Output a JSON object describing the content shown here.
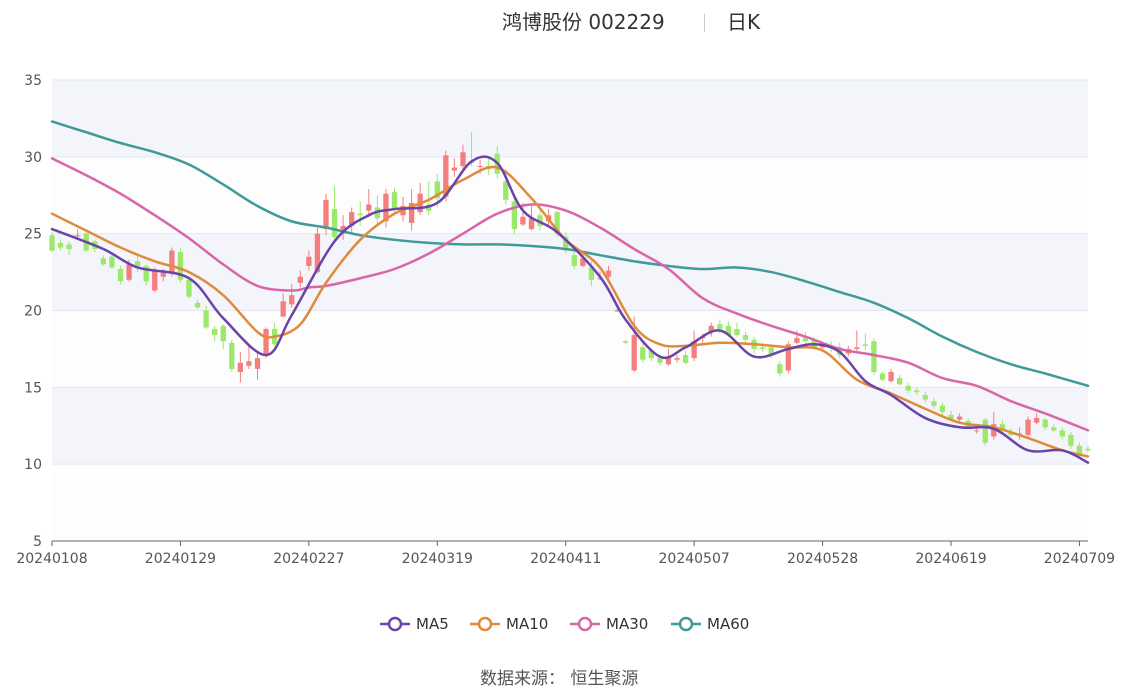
{
  "header": {
    "title": "鸿博股份 002229",
    "period": "日K"
  },
  "legend": [
    {
      "name": "MA5",
      "color": "#6a44a8"
    },
    {
      "name": "MA10",
      "color": "#e08a3c"
    },
    {
      "name": "MA30",
      "color": "#d866a8"
    },
    {
      "name": "MA60",
      "color": "#3f9a98"
    }
  ],
  "source": "数据来源： 恒生聚源",
  "colors": {
    "up": "#f47e7e",
    "down": "#9be86c",
    "band": "#f3f5fb",
    "grid": "#e3e6ef"
  },
  "chart_data": {
    "type": "candlestick",
    "title": "鸿博股份 002229",
    "subtitle": "日K",
    "xlabel": "",
    "ylabel": "",
    "ylim": [
      5,
      35
    ],
    "yticks": [
      5,
      10,
      15,
      20,
      25,
      30,
      35
    ],
    "grid": true,
    "legend_position": "bottom",
    "trading_days": 122,
    "x_tick_labels": [
      {
        "label": "20240108",
        "index": 0
      },
      {
        "label": "20240129",
        "index": 15
      },
      {
        "label": "20240227",
        "index": 30
      },
      {
        "label": "20240319",
        "index": 45
      },
      {
        "label": "20240411",
        "index": 60
      },
      {
        "label": "20240507",
        "index": 75
      },
      {
        "label": "20240528",
        "index": 90
      },
      {
        "label": "20240619",
        "index": 105
      },
      {
        "label": "20240709",
        "index": 120
      }
    ],
    "candles": [
      [
        24.9,
        23.9,
        25.1,
        23.8
      ],
      [
        24.4,
        24.1,
        24.6,
        23.9
      ],
      [
        24.3,
        24.0,
        24.5,
        23.6
      ],
      [
        24.9,
        24.9,
        25.3,
        24.6
      ],
      [
        25.0,
        23.9,
        25.2,
        23.8
      ],
      [
        24.5,
        24.0,
        24.6,
        23.8
      ],
      [
        23.4,
        23.0,
        23.6,
        22.9
      ],
      [
        23.5,
        22.8,
        23.7,
        22.7
      ],
      [
        22.7,
        21.9,
        22.9,
        21.7
      ],
      [
        22.0,
        23.0,
        23.3,
        21.9
      ],
      [
        23.2,
        22.9,
        23.6,
        22.5
      ],
      [
        22.9,
        21.9,
        23.0,
        21.6
      ],
      [
        21.3,
        22.6,
        22.8,
        21.2
      ],
      [
        22.2,
        22.5,
        22.7,
        21.9
      ],
      [
        22.4,
        23.9,
        24.1,
        22.2
      ],
      [
        23.8,
        22.0,
        24.1,
        21.8
      ],
      [
        22.0,
        20.9,
        22.2,
        20.8
      ],
      [
        20.5,
        20.2,
        20.7,
        20.1
      ],
      [
        20.0,
        18.9,
        20.3,
        18.8
      ],
      [
        18.8,
        18.4,
        19.0,
        18.0
      ],
      [
        19.0,
        18.0,
        19.1,
        17.5
      ],
      [
        17.9,
        16.2,
        18.1,
        16.0
      ],
      [
        16.0,
        16.6,
        17.3,
        15.3
      ],
      [
        16.4,
        16.7,
        17.7,
        16.2
      ],
      [
        16.2,
        16.9,
        17.4,
        15.5
      ],
      [
        17.1,
        18.8,
        18.9,
        16.9
      ],
      [
        18.8,
        17.8,
        19.2,
        17.6
      ],
      [
        19.6,
        20.6,
        21.1,
        19.6
      ],
      [
        20.4,
        21.0,
        21.7,
        20.2
      ],
      [
        21.8,
        22.2,
        22.6,
        21.5
      ],
      [
        22.9,
        23.5,
        23.9,
        22.6
      ],
      [
        22.5,
        25.0,
        25.4,
        22.4
      ],
      [
        25.3,
        27.2,
        27.6,
        24.9
      ],
      [
        26.6,
        24.8,
        28.1,
        24.4
      ],
      [
        25.0,
        25.5,
        26.2,
        24.6
      ],
      [
        25.5,
        26.4,
        26.7,
        25.0
      ],
      [
        26.3,
        26.2,
        27.1,
        25.5
      ],
      [
        26.5,
        26.9,
        27.9,
        26.1
      ],
      [
        26.7,
        26.0,
        27.5,
        25.6
      ],
      [
        25.8,
        27.6,
        27.9,
        25.4
      ],
      [
        27.7,
        26.6,
        28.0,
        26.2
      ],
      [
        26.2,
        26.8,
        27.4,
        25.8
      ],
      [
        25.7,
        27.0,
        27.9,
        25.2
      ],
      [
        26.4,
        27.6,
        28.3,
        26.2
      ],
      [
        26.9,
        26.5,
        28.4,
        26.2
      ],
      [
        28.4,
        27.3,
        28.9,
        26.7
      ],
      [
        27.4,
        30.1,
        30.4,
        27.1
      ],
      [
        29.1,
        29.3,
        29.9,
        28.7
      ],
      [
        29.4,
        30.3,
        30.8,
        29.1
      ],
      [
        29.7,
        29.6,
        31.6,
        29.4
      ],
      [
        29.4,
        29.4,
        29.8,
        28.9
      ],
      [
        29.4,
        29.2,
        30.0,
        28.8
      ],
      [
        30.2,
        28.9,
        30.7,
        28.6
      ],
      [
        28.4,
        27.2,
        29.2,
        26.9
      ],
      [
        27.1,
        25.3,
        27.5,
        25.0
      ],
      [
        25.6,
        26.1,
        27.0,
        25.5
      ],
      [
        25.3,
        26.0,
        26.8,
        25.2
      ],
      [
        26.2,
        25.5,
        26.7,
        25.2
      ],
      [
        25.8,
        26.2,
        26.6,
        25.5
      ],
      [
        26.4,
        25.0,
        26.5,
        24.8
      ],
      [
        24.8,
        23.9,
        25.1,
        23.7
      ],
      [
        23.6,
        22.9,
        23.8,
        22.7
      ],
      [
        22.9,
        23.4,
        23.7,
        22.8
      ],
      [
        22.8,
        22.0,
        23.2,
        21.6
      ],
      [
        22.1,
        22.1,
        22.5,
        22.0
      ],
      [
        22.2,
        22.6,
        22.9,
        21.9
      ],
      [
        20.0,
        20.0,
        20.1,
        19.9
      ],
      [
        18.0,
        17.9,
        18.1,
        17.8
      ],
      [
        16.1,
        18.4,
        19.6,
        16.0
      ],
      [
        17.6,
        16.8,
        18.1,
        16.6
      ],
      [
        17.4,
        16.9,
        17.5,
        16.7
      ],
      [
        16.9,
        16.6,
        17.1,
        16.4
      ],
      [
        16.5,
        16.9,
        17.5,
        16.4
      ],
      [
        16.8,
        16.9,
        17.1,
        16.6
      ],
      [
        17.1,
        16.6,
        17.4,
        16.5
      ],
      [
        16.9,
        18.0,
        18.7,
        16.7
      ],
      [
        18.2,
        18.3,
        18.5,
        17.9
      ],
      [
        18.6,
        19.0,
        19.2,
        18.3
      ],
      [
        19.1,
        18.8,
        19.4,
        18.5
      ],
      [
        19.0,
        18.4,
        19.3,
        18.3
      ],
      [
        18.8,
        18.4,
        19.2,
        18.3
      ],
      [
        18.4,
        18.1,
        18.6,
        17.9
      ],
      [
        18.1,
        17.5,
        18.3,
        17.2
      ],
      [
        17.6,
        17.5,
        17.9,
        17.3
      ],
      [
        17.6,
        17.1,
        17.8,
        16.9
      ],
      [
        16.5,
        15.9,
        16.7,
        15.7
      ],
      [
        16.1,
        17.8,
        18.0,
        15.9
      ],
      [
        17.9,
        18.2,
        18.7,
        17.8
      ],
      [
        18.3,
        18.0,
        18.6,
        17.9
      ],
      [
        18.1,
        17.6,
        18.3,
        17.5
      ],
      [
        17.6,
        17.7,
        17.9,
        17.4
      ],
      [
        17.7,
        17.6,
        18.0,
        17.3
      ],
      [
        17.6,
        17.1,
        17.9,
        16.9
      ],
      [
        17.2,
        17.5,
        17.7,
        17.0
      ],
      [
        17.5,
        17.6,
        18.7,
        17.3
      ],
      [
        17.8,
        17.7,
        18.5,
        17.4
      ],
      [
        18.0,
        16.0,
        18.2,
        15.8
      ],
      [
        15.9,
        15.5,
        16.0,
        15.4
      ],
      [
        15.4,
        16.0,
        16.2,
        15.3
      ],
      [
        15.6,
        15.2,
        15.8,
        15.1
      ],
      [
        15.1,
        14.8,
        15.3,
        14.6
      ],
      [
        14.8,
        14.7,
        15.0,
        14.5
      ],
      [
        14.5,
        14.2,
        14.7,
        14.0
      ],
      [
        14.1,
        13.8,
        14.3,
        13.6
      ],
      [
        13.8,
        13.4,
        14.0,
        13.1
      ],
      [
        13.2,
        12.9,
        13.5,
        12.8
      ],
      [
        12.9,
        13.1,
        13.3,
        12.7
      ],
      [
        12.8,
        12.4,
        13.0,
        12.3
      ],
      [
        12.2,
        12.2,
        12.4,
        12.0
      ],
      [
        12.9,
        11.4,
        13.0,
        11.2
      ],
      [
        11.8,
        12.6,
        13.4,
        11.6
      ],
      [
        12.6,
        12.2,
        12.9,
        12.0
      ],
      [
        12.1,
        11.9,
        12.3,
        11.8
      ],
      [
        12.0,
        12.0,
        12.4,
        11.6
      ],
      [
        11.9,
        12.9,
        13.1,
        11.8
      ],
      [
        12.7,
        13.0,
        13.3,
        12.6
      ],
      [
        12.9,
        12.4,
        13.0,
        12.2
      ],
      [
        12.4,
        12.2,
        12.6,
        12.1
      ],
      [
        12.2,
        11.8,
        12.4,
        11.6
      ],
      [
        11.9,
        11.2,
        12.1,
        11.0
      ],
      [
        11.2,
        10.6,
        11.4,
        10.5
      ],
      [
        11.0,
        10.9,
        11.2,
        10.8
      ]
    ],
    "series": [
      {
        "name": "MA5",
        "x": [
          0,
          6,
          10,
          16,
          20,
          25,
          28,
          33,
          37,
          40,
          45,
          49,
          52,
          55,
          59,
          64,
          67,
          71,
          74,
          78,
          82,
          86,
          89,
          92,
          95,
          98,
          102,
          106,
          110,
          114,
          118,
          121
        ],
        "values": [
          25.3,
          24.0,
          22.8,
          22.1,
          19.5,
          17.1,
          19.7,
          24.5,
          26.2,
          26.6,
          27.0,
          29.7,
          29.6,
          26.5,
          25.1,
          22.2,
          19.4,
          17.0,
          17.6,
          18.7,
          17.0,
          17.5,
          17.8,
          17.3,
          15.4,
          14.5,
          13.0,
          12.4,
          12.3,
          10.9,
          10.9,
          10.1
        ]
      },
      {
        "name": "MA10",
        "x": [
          0,
          4,
          8,
          12,
          16,
          20,
          24,
          26,
          29,
          32,
          36,
          40,
          44,
          48,
          52,
          56,
          60,
          64,
          68,
          71,
          74,
          78,
          82,
          86,
          90,
          94,
          98,
          102,
          106,
          110,
          114,
          118,
          121
        ],
        "values": [
          26.3,
          25.2,
          24.1,
          23.2,
          22.5,
          21.0,
          18.6,
          18.3,
          19.1,
          21.8,
          24.6,
          26.3,
          27.2,
          28.5,
          29.3,
          27.3,
          24.6,
          22.8,
          19.0,
          17.8,
          17.7,
          17.9,
          17.8,
          17.6,
          17.4,
          15.5,
          14.6,
          13.6,
          12.7,
          12.4,
          11.7,
          10.9,
          10.5
        ]
      },
      {
        "name": "MA30",
        "x": [
          0,
          4,
          8,
          12,
          16,
          20,
          24,
          28,
          30,
          32,
          36,
          40,
          44,
          48,
          52,
          56,
          60,
          64,
          68,
          72,
          76,
          80,
          84,
          88,
          92,
          96,
          100,
          104,
          108,
          112,
          116,
          121
        ],
        "values": [
          29.9,
          28.8,
          27.6,
          26.2,
          24.7,
          23.0,
          21.6,
          21.3,
          21.5,
          21.6,
          22.1,
          22.7,
          23.7,
          25.0,
          26.3,
          26.9,
          26.5,
          25.4,
          24.0,
          22.7,
          20.8,
          19.8,
          19.0,
          18.3,
          17.5,
          17.1,
          16.6,
          15.6,
          15.1,
          14.1,
          13.3,
          12.2
        ]
      },
      {
        "name": "MA60",
        "x": [
          0,
          4,
          8,
          12,
          16,
          20,
          24,
          28,
          32,
          36,
          40,
          44,
          48,
          52,
          56,
          60,
          64,
          68,
          72,
          76,
          80,
          84,
          88,
          92,
          96,
          100,
          104,
          108,
          112,
          116,
          121
        ],
        "values": [
          32.3,
          31.6,
          30.9,
          30.3,
          29.5,
          28.2,
          26.8,
          25.8,
          25.4,
          24.9,
          24.6,
          24.4,
          24.3,
          24.3,
          24.2,
          24.0,
          23.6,
          23.2,
          22.9,
          22.7,
          22.8,
          22.5,
          21.9,
          21.2,
          20.5,
          19.5,
          18.3,
          17.3,
          16.5,
          15.9,
          15.1
        ]
      }
    ]
  }
}
